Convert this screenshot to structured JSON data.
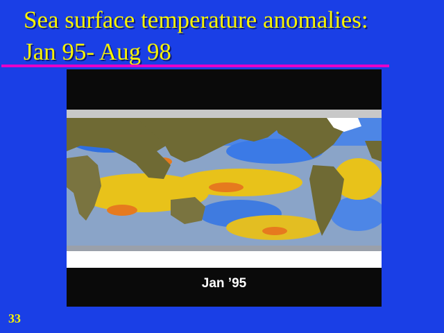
{
  "slide": {
    "title_line1": "Sea surface temperature anomalies:",
    "title_line2": "Jan 95- Aug 98",
    "number": "33"
  },
  "figure": {
    "caption": "Jan ’95"
  },
  "colors": {
    "background": "#1a3fe6",
    "title": "#f7f300",
    "rule": "#e600c8",
    "land": "#6f6a34",
    "warm_anomaly": "#e8c21a",
    "hot_anomaly": "#e67a1e",
    "cool_anomaly": "#4a86e8",
    "ice": "#ffffff"
  }
}
